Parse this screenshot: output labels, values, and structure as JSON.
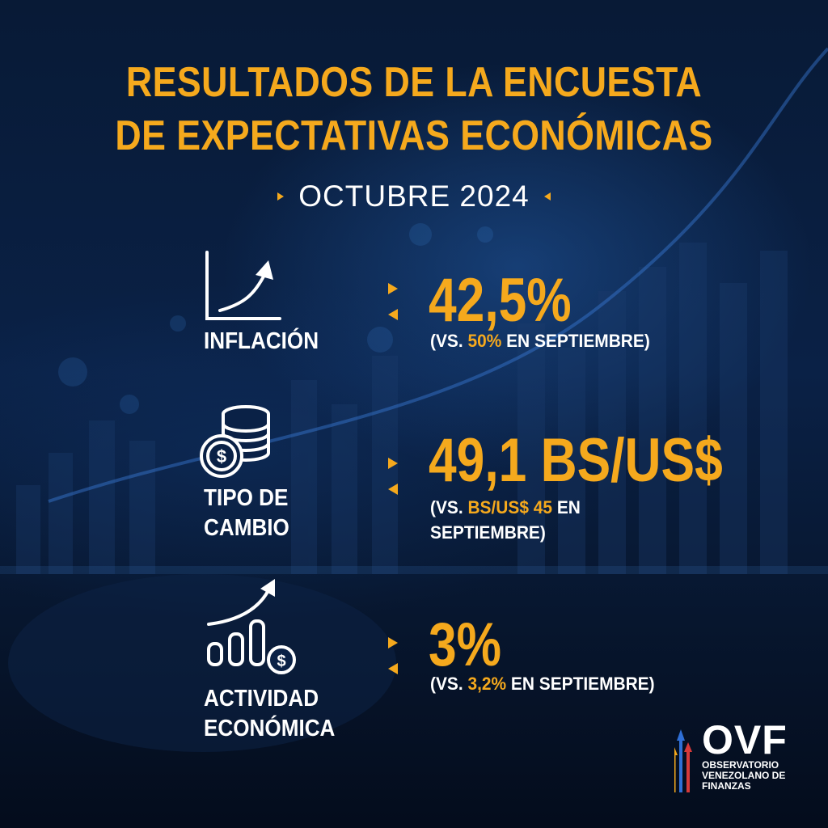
{
  "title": {
    "line1": "RESULTADOS DE LA ENCUESTA",
    "line2": "DE EXPECTATIVAS ECONÓMICAS"
  },
  "date": "OCTUBRE 2024",
  "metrics": [
    {
      "label_lines": [
        "INFLACIÓN"
      ],
      "value": "42,5%",
      "compare": {
        "prefix": "(VS. ",
        "highlight": "50%",
        "suffix": " EN SEPTIEMBRE)"
      },
      "icon": "growth-chart-icon"
    },
    {
      "label_lines": [
        "TIPO DE",
        "CAMBIO"
      ],
      "value": "49,1 BS/US$",
      "compare": {
        "prefix": "(VS. ",
        "highlight": "BS/US$ 45",
        "suffix": " EN",
        "line2": "SEPTIEMBRE)"
      },
      "icon": "coins-dollar-icon"
    },
    {
      "label_lines": [
        "ACTIVIDAD",
        "ECONÓMICA"
      ],
      "value": "3%",
      "compare": {
        "prefix": "(VS. ",
        "highlight": "3,2%",
        "suffix": " EN SEPTIEMBRE)"
      },
      "icon": "bars-dollar-growth-icon"
    }
  ],
  "logo": {
    "name": "OVF",
    "line1": "OBSERVATORIO",
    "line2": "VENEZOLANO DE",
    "line3": "FINANZAS"
  },
  "colors": {
    "accent": "#f5a91d",
    "background": "#061329",
    "text": "#ffffff"
  }
}
